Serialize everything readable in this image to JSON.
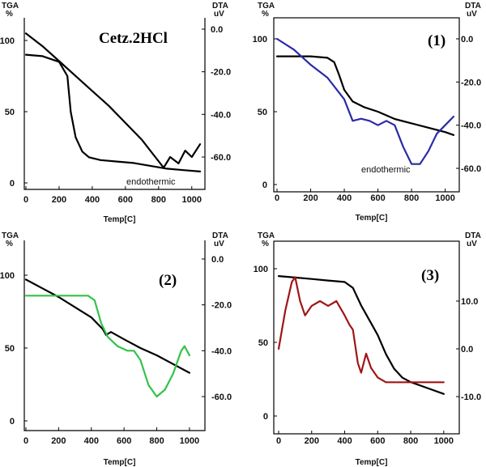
{
  "chart_data": [
    {
      "type": "line",
      "title": "Cetz.2HCl",
      "xlabel": "Temp[C]",
      "ylabel_left": "TGA\n%",
      "ylabel_right": "DTA\nuV",
      "xlim": [
        0,
        1050
      ],
      "ylim_left": [
        -5,
        110
      ],
      "ylim_right": [
        -70,
        5
      ],
      "x_ticks": [
        "0",
        "200",
        "400",
        "600",
        "800",
        "1000"
      ],
      "y_left_ticks": [
        "0",
        "50",
        "100"
      ],
      "y_right_ticks": [
        "0.0",
        "-20.0",
        "-40.0",
        "-60.0"
      ],
      "annotations": [
        "endothermic"
      ],
      "series": [
        {
          "axis": "left",
          "color": "#000000",
          "x": [
            0,
            100,
            200,
            250,
            270,
            300,
            340,
            380,
            450,
            550,
            650,
            750,
            850,
            950,
            1050
          ],
          "y": [
            90,
            89,
            85,
            75,
            50,
            32,
            22,
            18,
            16,
            15,
            14,
            12,
            10,
            9,
            8
          ]
        },
        {
          "axis": "right",
          "color": "#000000",
          "x": [
            0,
            100,
            200,
            300,
            400,
            500,
            600,
            700,
            780,
            830,
            870,
            920,
            960,
            1000,
            1050
          ],
          "y": [
            -2,
            -8,
            -15,
            -22,
            -29,
            -36,
            -44,
            -52,
            -60,
            -65,
            -60,
            -63,
            -57,
            -60,
            -54
          ]
        }
      ]
    },
    {
      "type": "line",
      "title": "(1)",
      "xlabel": "Temp[C]",
      "ylabel_left": "TGA\n%",
      "ylabel_right": "DTA\nuV",
      "xlim": [
        0,
        1050
      ],
      "ylim_left": [
        -5,
        110
      ],
      "ylim_right": [
        -70,
        5
      ],
      "x_ticks": [
        "0",
        "200",
        "400",
        "600",
        "800",
        "1000"
      ],
      "y_left_ticks": [
        "0",
        "50",
        "100"
      ],
      "y_right_ticks": [
        "0.0",
        "-20.0",
        "-40.0",
        "-60.0"
      ],
      "annotations": [
        "endothermic"
      ],
      "series": [
        {
          "axis": "left",
          "color": "#000000",
          "x": [
            0,
            100,
            200,
            300,
            340,
            370,
            400,
            450,
            520,
            600,
            700,
            800,
            900,
            1000,
            1050
          ],
          "y": [
            88,
            88,
            88,
            87,
            84,
            75,
            65,
            57,
            53,
            50,
            45,
            42,
            39,
            36,
            34
          ]
        },
        {
          "axis": "right",
          "color": "#2a2aa6",
          "x": [
            0,
            100,
            200,
            300,
            400,
            450,
            500,
            550,
            600,
            650,
            700,
            750,
            800,
            850,
            900,
            950,
            1000,
            1050
          ],
          "y": [
            0,
            -5,
            -12,
            -18,
            -28,
            -38,
            -37,
            -38,
            -40,
            -38,
            -40,
            -50,
            -58,
            -58,
            -52,
            -44,
            -40,
            -36
          ]
        }
      ]
    },
    {
      "type": "line",
      "title": "(2)",
      "xlabel": "Temp[C]",
      "ylabel_left": "TGA\n%",
      "ylabel_right": "DTA\nuV",
      "xlim": [
        0,
        1050
      ],
      "ylim_left": [
        -5,
        110
      ],
      "ylim_right": [
        -70,
        5
      ],
      "x_ticks": [
        "0",
        "200",
        "400",
        "600",
        "800",
        "1000"
      ],
      "y_left_ticks": [
        "0",
        "50",
        "100"
      ],
      "y_right_ticks": [
        "0.0",
        "-20.0",
        "-40.0",
        "-60.0"
      ],
      "annotations": [],
      "series": [
        {
          "axis": "left",
          "color": "#000000",
          "x": [
            0,
            100,
            200,
            300,
            400,
            470,
            490,
            520,
            600,
            700,
            800,
            900,
            1000
          ],
          "y": [
            97,
            91,
            85,
            78,
            71,
            63,
            59,
            61,
            56,
            50,
            45,
            39,
            33
          ]
        },
        {
          "axis": "right",
          "color": "#33c24a",
          "x": [
            0,
            100,
            200,
            300,
            380,
            420,
            460,
            500,
            560,
            620,
            660,
            700,
            750,
            800,
            850,
            900,
            950,
            970,
            1000
          ],
          "y": [
            -16,
            -16,
            -16,
            -16,
            -16,
            -18,
            -28,
            -34,
            -38,
            -40,
            -40,
            -44,
            -55,
            -60,
            -57,
            -50,
            -40,
            -38,
            -42
          ]
        }
      ]
    },
    {
      "type": "line",
      "title": "(3)",
      "xlabel": "Temp[C]",
      "ylabel_left": "TGA\n%",
      "ylabel_right": "DTA\nuV",
      "xlim": [
        0,
        1050
      ],
      "ylim_left": [
        -5,
        110
      ],
      "ylim_right": [
        -15,
        25
      ],
      "x_ticks": [
        "0",
        "200",
        "400",
        "600",
        "800",
        "1000"
      ],
      "y_left_ticks": [
        "0",
        "50",
        "100"
      ],
      "y_right_ticks": [
        "10.0",
        "0.0",
        "-10.0"
      ],
      "annotations": [],
      "series": [
        {
          "axis": "left",
          "color": "#000000",
          "x": [
            0,
            100,
            200,
            300,
            400,
            450,
            500,
            550,
            600,
            650,
            700,
            750,
            800,
            900,
            1000
          ],
          "y": [
            95,
            94,
            93,
            92,
            91,
            87,
            75,
            65,
            55,
            42,
            32,
            26,
            23,
            19,
            15
          ]
        },
        {
          "axis": "right",
          "color": "#a01515",
          "x": [
            0,
            40,
            80,
            100,
            130,
            160,
            200,
            250,
            300,
            350,
            400,
            430,
            450,
            480,
            500,
            530,
            560,
            600,
            650,
            700,
            750,
            800,
            900,
            1000
          ],
          "y": [
            0,
            8,
            14,
            15,
            10,
            7,
            9,
            10,
            9,
            10,
            7,
            5,
            4,
            -3,
            -5,
            -1,
            -4,
            -6,
            -7,
            -7,
            -7,
            -7,
            -7,
            -7
          ]
        }
      ]
    }
  ]
}
